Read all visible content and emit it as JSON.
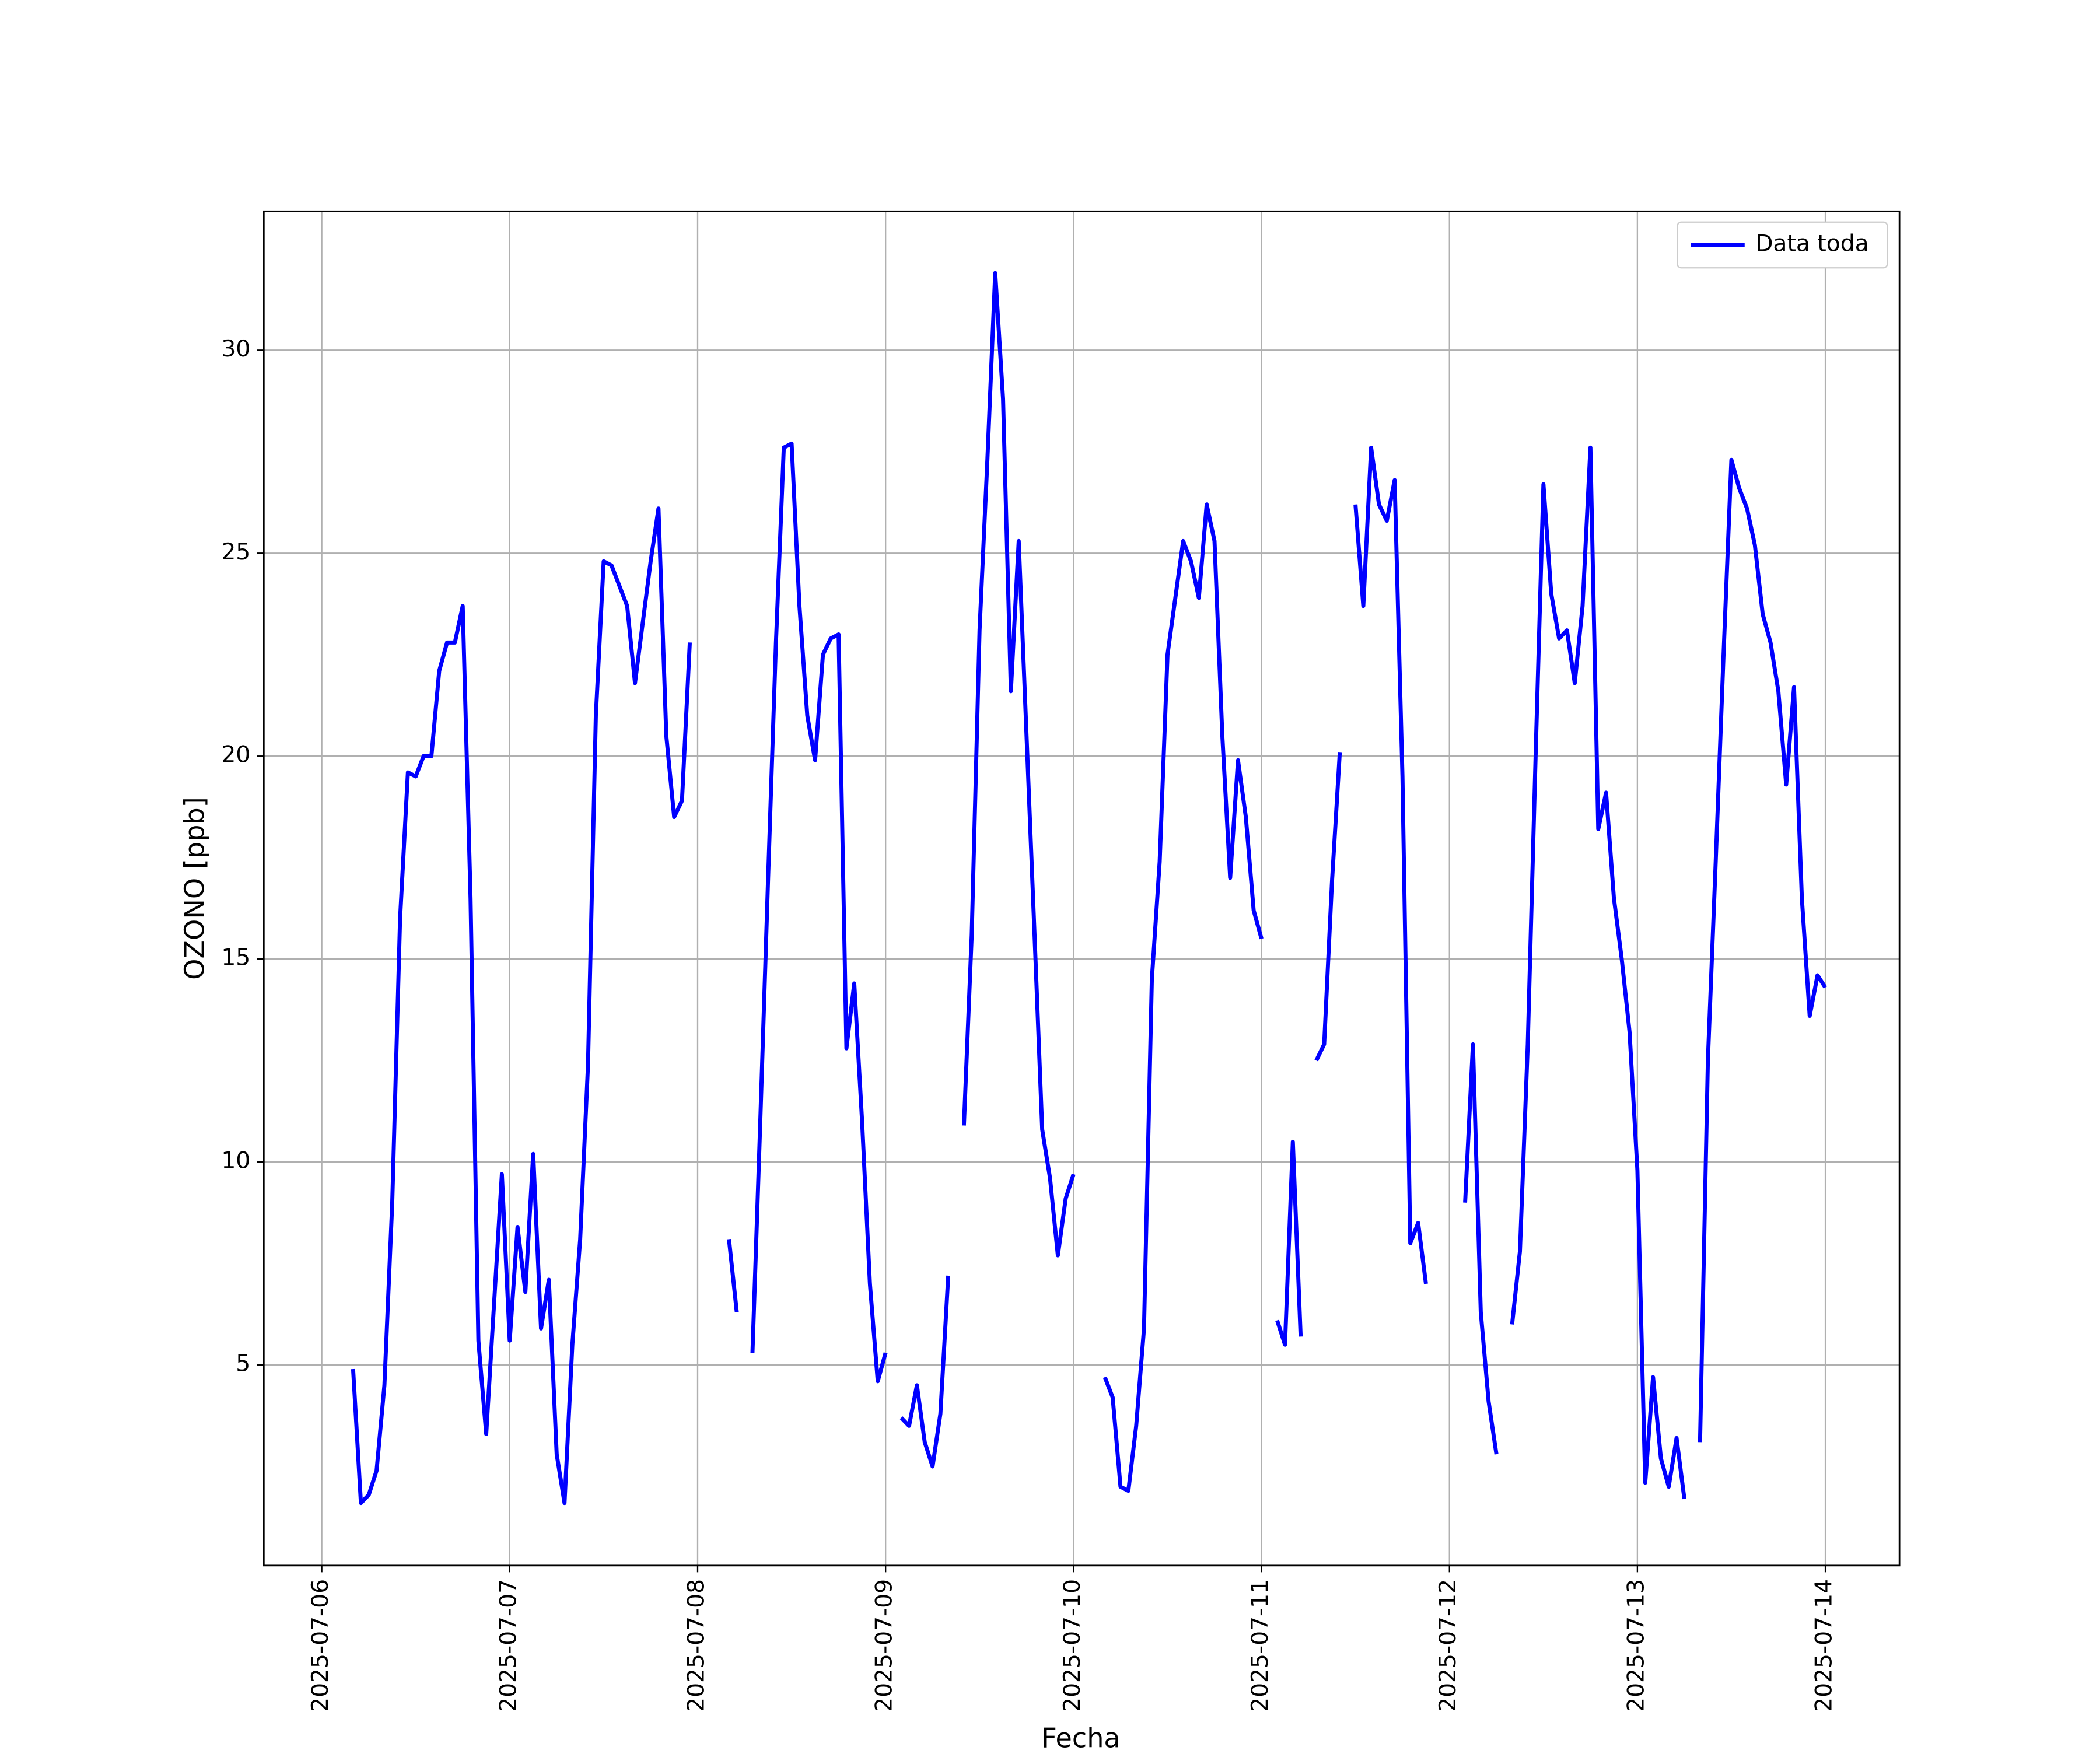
{
  "chart_data": {
    "type": "line",
    "xlabel": "Fecha",
    "ylabel": "OZONO [ppb]",
    "x": [
      "2025-07-06 04:00",
      "2025-07-06 05:00",
      "2025-07-06 06:00",
      "2025-07-06 07:00",
      "2025-07-06 08:00",
      "2025-07-06 09:00",
      "2025-07-06 10:00",
      "2025-07-06 11:00",
      "2025-07-06 12:00",
      "2025-07-06 13:00",
      "2025-07-06 14:00",
      "2025-07-06 15:00",
      "2025-07-06 16:00",
      "2025-07-06 17:00",
      "2025-07-06 18:00",
      "2025-07-06 19:00",
      "2025-07-06 20:00",
      "2025-07-06 21:00",
      "2025-07-06 22:00",
      "2025-07-06 23:00",
      "2025-07-07 00:00",
      "2025-07-07 01:00",
      "2025-07-07 02:00",
      "2025-07-07 03:00",
      "2025-07-07 04:00",
      "2025-07-07 05:00",
      "2025-07-07 06:00",
      "2025-07-07 07:00",
      "2025-07-07 08:00",
      "2025-07-07 09:00",
      "2025-07-07 10:00",
      "2025-07-07 11:00",
      "2025-07-07 12:00",
      "2025-07-07 13:00",
      "2025-07-07 14:00",
      "2025-07-07 15:00",
      "2025-07-07 16:00",
      "2025-07-07 17:00",
      "2025-07-07 18:00",
      "2025-07-07 19:00",
      "2025-07-07 20:00",
      "2025-07-07 21:00",
      "2025-07-07 22:00",
      "2025-07-07 23:00",
      "2025-07-08 00:00",
      "2025-07-08 01:00",
      "2025-07-08 02:00",
      "2025-07-08 03:00",
      "2025-07-08 04:00",
      "2025-07-08 05:00",
      "2025-07-08 06:00",
      "2025-07-08 07:00",
      "2025-07-08 08:00",
      "2025-07-08 09:00",
      "2025-07-08 10:00",
      "2025-07-08 11:00",
      "2025-07-08 12:00",
      "2025-07-08 13:00",
      "2025-07-08 14:00",
      "2025-07-08 15:00",
      "2025-07-08 16:00",
      "2025-07-08 17:00",
      "2025-07-08 18:00",
      "2025-07-08 19:00",
      "2025-07-08 20:00",
      "2025-07-08 21:00",
      "2025-07-08 22:00",
      "2025-07-08 23:00",
      "2025-07-09 00:00",
      "2025-07-09 01:00",
      "2025-07-09 02:00",
      "2025-07-09 03:00",
      "2025-07-09 04:00",
      "2025-07-09 05:00",
      "2025-07-09 06:00",
      "2025-07-09 07:00",
      "2025-07-09 08:00",
      "2025-07-09 09:00",
      "2025-07-09 10:00",
      "2025-07-09 11:00",
      "2025-07-09 12:00",
      "2025-07-09 13:00",
      "2025-07-09 14:00",
      "2025-07-09 15:00",
      "2025-07-09 16:00",
      "2025-07-09 17:00",
      "2025-07-09 18:00",
      "2025-07-09 19:00",
      "2025-07-09 20:00",
      "2025-07-09 21:00",
      "2025-07-09 22:00",
      "2025-07-09 23:00",
      "2025-07-10 00:00",
      "2025-07-10 01:00",
      "2025-07-10 02:00",
      "2025-07-10 03:00",
      "2025-07-10 04:00",
      "2025-07-10 05:00",
      "2025-07-10 06:00",
      "2025-07-10 07:00",
      "2025-07-10 08:00",
      "2025-07-10 09:00",
      "2025-07-10 10:00",
      "2025-07-10 11:00",
      "2025-07-10 12:00",
      "2025-07-10 13:00",
      "2025-07-10 14:00",
      "2025-07-10 15:00",
      "2025-07-10 16:00",
      "2025-07-10 17:00",
      "2025-07-10 18:00",
      "2025-07-10 19:00",
      "2025-07-10 20:00",
      "2025-07-10 21:00",
      "2025-07-10 22:00",
      "2025-07-10 23:00",
      "2025-07-11 00:00",
      "2025-07-11 01:00",
      "2025-07-11 02:00",
      "2025-07-11 03:00",
      "2025-07-11 04:00",
      "2025-07-11 05:00",
      "2025-07-11 06:00",
      "2025-07-11 07:00",
      "2025-07-11 08:00",
      "2025-07-11 09:00",
      "2025-07-11 10:00",
      "2025-07-11 11:00",
      "2025-07-11 12:00",
      "2025-07-11 13:00",
      "2025-07-11 14:00",
      "2025-07-11 15:00",
      "2025-07-11 16:00",
      "2025-07-11 17:00",
      "2025-07-11 18:00",
      "2025-07-11 19:00",
      "2025-07-11 20:00",
      "2025-07-11 21:00",
      "2025-07-11 22:00",
      "2025-07-11 23:00",
      "2025-07-12 00:00",
      "2025-07-12 01:00",
      "2025-07-12 02:00",
      "2025-07-12 03:00",
      "2025-07-12 04:00",
      "2025-07-12 05:00",
      "2025-07-12 06:00",
      "2025-07-12 07:00",
      "2025-07-12 08:00",
      "2025-07-12 09:00",
      "2025-07-12 10:00",
      "2025-07-12 11:00",
      "2025-07-12 12:00",
      "2025-07-12 13:00",
      "2025-07-12 14:00",
      "2025-07-12 15:00",
      "2025-07-12 16:00",
      "2025-07-12 17:00",
      "2025-07-12 18:00",
      "2025-07-12 19:00",
      "2025-07-12 20:00",
      "2025-07-12 21:00",
      "2025-07-12 22:00",
      "2025-07-12 23:00",
      "2025-07-13 00:00",
      "2025-07-13 01:00",
      "2025-07-13 02:00",
      "2025-07-13 03:00",
      "2025-07-13 04:00",
      "2025-07-13 05:00",
      "2025-07-13 06:00",
      "2025-07-13 07:00",
      "2025-07-13 08:00",
      "2025-07-13 09:00",
      "2025-07-13 10:00",
      "2025-07-13 11:00",
      "2025-07-13 12:00",
      "2025-07-13 13:00",
      "2025-07-13 14:00",
      "2025-07-13 15:00",
      "2025-07-13 16:00",
      "2025-07-13 17:00",
      "2025-07-13 18:00",
      "2025-07-13 19:00",
      "2025-07-13 20:00",
      "2025-07-13 21:00",
      "2025-07-13 22:00",
      "2025-07-13 23:00",
      "2025-07-14 00:00"
    ],
    "series": [
      {
        "name": "Data toda",
        "color": "#0000ff",
        "values": [
          4.9,
          1.6,
          1.8,
          2.4,
          4.5,
          9,
          16,
          19.6,
          19.5,
          20,
          20,
          22.1,
          22.8,
          22.8,
          23.7,
          16.5,
          5.6,
          3.3,
          6.5,
          9.7,
          5.6,
          8.4,
          6.8,
          10.2,
          5.9,
          7.1,
          2.8,
          1.6,
          5.5,
          8.1,
          12.4,
          21,
          24.8,
          24.7,
          24.2,
          23.7,
          21.8,
          23.3,
          24.8,
          26.1,
          20.5,
          18.5,
          18.9,
          22.8,
          null,
          null,
          null,
          null,
          8.1,
          6.3,
          null,
          5.3,
          11,
          17,
          22.8,
          27.6,
          27.7,
          23.7,
          21,
          19.9,
          22.5,
          22.9,
          23,
          12.8,
          14.4,
          11,
          7,
          4.6,
          5.3,
          null,
          3.7,
          3.5,
          4.5,
          3.1,
          2.5,
          3.8,
          7.2,
          null,
          10.9,
          15.6,
          23.1,
          27.3,
          31.9,
          28.8,
          21.6,
          25.3,
          20.5,
          15.7,
          10.8,
          9.6,
          7.7,
          9.1,
          9.7,
          null,
          null,
          null,
          4.7,
          4.2,
          2,
          1.9,
          3.5,
          5.9,
          14.5,
          17.4,
          22.5,
          23.9,
          25.3,
          24.8,
          23.9,
          26.2,
          25.3,
          20.5,
          17,
          19.9,
          18.5,
          16.2,
          15.5,
          null,
          6.1,
          5.5,
          10.5,
          5.7,
          null,
          12.5,
          12.9,
          16.9,
          20.1,
          null,
          26.2,
          23.7,
          27.6,
          26.2,
          25.8,
          26.8,
          19.5,
          8,
          8.5,
          7,
          null,
          null,
          null,
          null,
          9,
          12.9,
          6.3,
          4.1,
          2.8,
          null,
          6,
          7.8,
          12.9,
          20,
          26.7,
          24,
          22.9,
          23.1,
          21.8,
          23.7,
          27.6,
          18.2,
          19.1,
          16.5,
          15,
          13.2,
          9.8,
          2.1,
          4.7,
          2.7,
          2,
          3.2,
          1.7,
          null,
          3.1,
          12.5,
          17.4,
          22.5,
          27.3,
          26.6,
          26.1,
          25.2,
          23.5,
          22.8,
          21.6,
          19.3,
          21.7,
          16.5,
          13.6,
          14.6,
          14.3
        ]
      }
    ],
    "xlim": [
      "2025-07-05 16:36",
      "2025-07-14 09:28"
    ],
    "xticks": [
      "2025-07-06",
      "2025-07-07",
      "2025-07-08",
      "2025-07-09",
      "2025-07-10",
      "2025-07-11",
      "2025-07-12",
      "2025-07-13",
      "2025-07-14"
    ],
    "ylim": [
      0.06,
      33.42
    ],
    "yticks": [
      5,
      10,
      15,
      20,
      25,
      30
    ],
    "grid": true,
    "legend": "upper right"
  }
}
